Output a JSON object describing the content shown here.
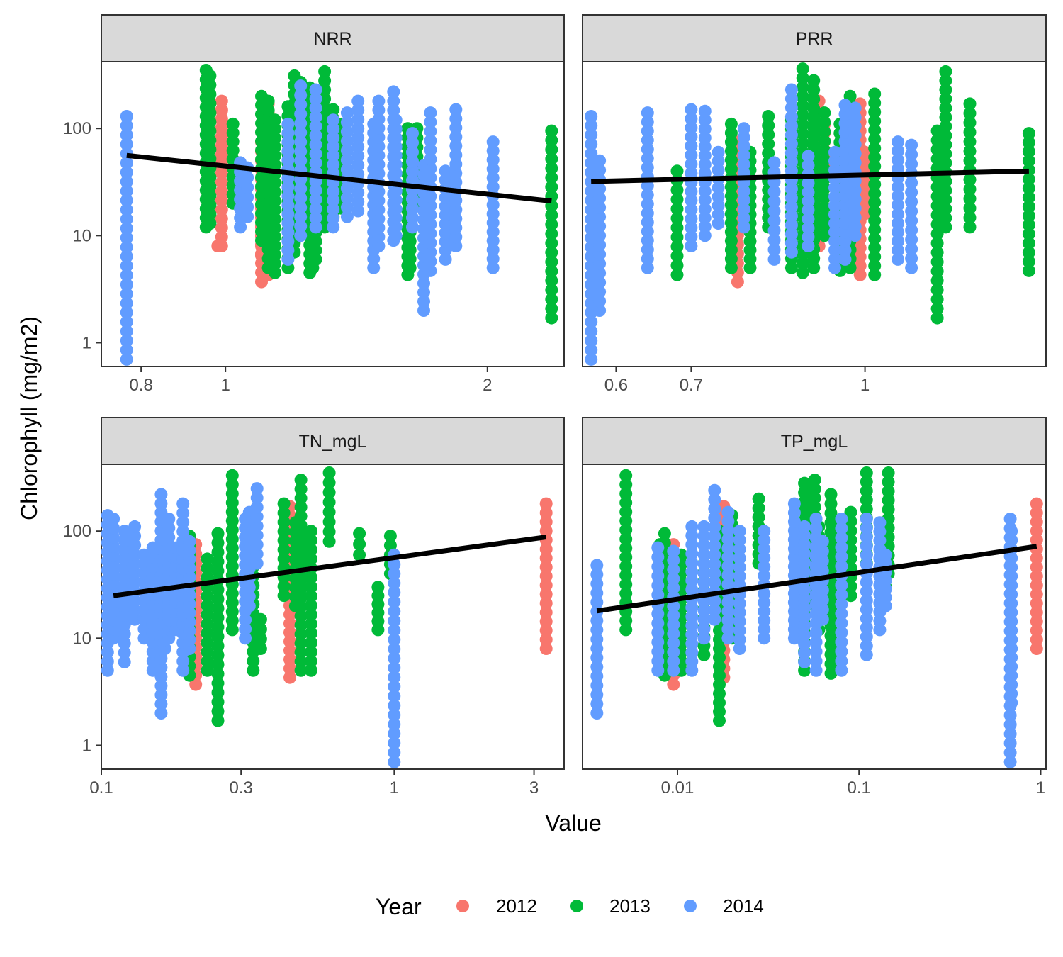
{
  "chart_data": {
    "type": "scatter",
    "facet_layout": "2x2",
    "ylabel": "Chlorophyll (mg/m2)",
    "xlabel": "Value",
    "y_scale": "log10",
    "x_scale": "log10",
    "ylim": [
      0.6,
      420
    ],
    "y_ticks": [
      {
        "value": 1,
        "label": "1"
      },
      {
        "value": 10,
        "label": "10"
      },
      {
        "value": 100,
        "label": "100"
      }
    ],
    "legend": {
      "title": "Year",
      "position": "bottom",
      "entries": [
        {
          "label": "2012",
          "color": "#F8766D"
        },
        {
          "label": "2013",
          "color": "#00BA38"
        },
        {
          "label": "2014",
          "color": "#619CFF"
        }
      ]
    },
    "trend_line_color": "#000000",
    "panels": [
      {
        "title": "NRR",
        "xlim": [
          0.72,
          2.45
        ],
        "x_ticks": [
          {
            "value": 0.8,
            "label": "0.8"
          },
          {
            "value": 1,
            "label": "1"
          },
          {
            "value": 2,
            "label": "2"
          }
        ],
        "trend": {
          "x": [
            0.77,
            2.37
          ],
          "y": [
            56,
            21
          ]
        },
        "series": [
          {
            "name": "2012",
            "x": [
              0.99,
              0.98,
              0.99,
              1.1,
              1.1,
              1.12,
              1.12,
              1.13,
              1.13
            ],
            "y_min": [
              43,
              8,
              8,
              3.7,
              6.5,
              4.3,
              17,
              25,
              12
            ],
            "y_max": [
              180,
              8,
              150,
              75,
              75,
              170,
              110,
              80,
              60
            ]
          },
          {
            "name": "2013",
            "x": [
              0.95,
              0.96,
              1.02,
              1.1,
              1.12,
              1.14,
              1.18,
              1.2,
              1.22,
              1.25,
              1.26,
              1.27,
              1.3,
              1.33,
              1.36,
              1.62,
              1.63,
              1.66,
              2.37
            ],
            "y_min": [
              12,
              13,
              20,
              9,
              5,
              4.5,
              5,
              7,
              20,
              4.5,
              5,
              6,
              12,
              15,
              18,
              4.3,
              5,
              20,
              1.7
            ],
            "y_max": [
              350,
              310,
              110,
              200,
              180,
              120,
              160,
              310,
              270,
              240,
              160,
              130,
              340,
              150,
              110,
              100,
              60,
              100,
              95
            ]
          },
          {
            "name": "2014",
            "x": [
              0.77,
              1.04,
              1.06,
              1.18,
              1.22,
              1.27,
              1.33,
              1.38,
              1.42,
              1.48,
              1.5,
              1.56,
              1.57,
              1.64,
              1.69,
              1.72,
              1.79,
              1.84,
              2.03
            ],
            "y_min": [
              0.7,
              12,
              15,
              6,
              10,
              12,
              12,
              15,
              17,
              5,
              8,
              9,
              10,
              12,
              2,
              4.7,
              6,
              8,
              5
            ],
            "y_max": [
              130,
              48,
              43,
              110,
              250,
              230,
              120,
              140,
              180,
              110,
              180,
              220,
              120,
              90,
              45,
              140,
              40,
              150,
              75
            ]
          }
        ]
      },
      {
        "title": "PRR",
        "xlim": [
          0.56,
          1.45
        ],
        "x_ticks": [
          {
            "value": 0.6,
            "label": "0.6"
          },
          {
            "value": 0.7,
            "label": "0.7"
          },
          {
            "value": 1,
            "label": "1"
          }
        ],
        "trend": {
          "x": [
            0.57,
            1.4
          ],
          "y": [
            32,
            40
          ]
        },
        "series": [
          {
            "name": "2012",
            "x": [
              0.77,
              0.91,
              0.92,
              0.99,
              1.0
            ],
            "y_min": [
              3.7,
              8,
              43,
              4.3,
              16
            ],
            "y_max": [
              75,
              180,
              110,
              170,
              60
            ]
          },
          {
            "name": "2013",
            "x": [
              0.68,
              0.76,
              0.79,
              0.82,
              0.86,
              0.88,
              0.9,
              0.92,
              0.95,
              0.97,
              1.02,
              1.16,
              1.18,
              1.24,
              1.4
            ],
            "y_min": [
              4.3,
              5,
              5,
              12,
              5,
              4.5,
              5,
              10,
              4.7,
              5,
              4.3,
              1.7,
              12,
              12,
              4.7
            ],
            "y_max": [
              40,
              110,
              60,
              130,
              120,
              360,
              280,
              140,
              110,
              200,
              210,
              95,
              340,
              170,
              90
            ]
          },
          {
            "name": "2014",
            "x": [
              0.57,
              0.58,
              0.64,
              0.7,
              0.72,
              0.74,
              0.78,
              0.83,
              0.86,
              0.89,
              0.94,
              0.96,
              0.98,
              1.07,
              1.1
            ],
            "y_min": [
              0.7,
              2,
              5,
              8,
              10,
              13,
              12,
              6,
              7,
              8,
              5,
              6,
              10,
              6,
              5
            ],
            "y_max": [
              130,
              50,
              140,
              150,
              145,
              60,
              100,
              48,
              230,
              55,
              60,
              165,
              155,
              75,
              70
            ]
          }
        ]
      },
      {
        "title": "TN_mgL",
        "xlim": [
          0.1,
          3.8
        ],
        "x_ticks": [
          {
            "value": 0.1,
            "label": "0.1"
          },
          {
            "value": 0.3,
            "label": "0.3"
          },
          {
            "value": 1,
            "label": "1"
          },
          {
            "value": 3,
            "label": "3"
          }
        ],
        "trend": {
          "x": [
            0.11,
            3.3
          ],
          "y": [
            25,
            88
          ]
        },
        "series": [
          {
            "name": "2012",
            "x": [
              0.21,
              0.44,
              3.3
            ],
            "y_min": [
              3.7,
              4.3,
              8
            ],
            "y_max": [
              75,
              170,
              180
            ]
          },
          {
            "name": "2013",
            "x": [
              0.2,
              0.23,
              0.25,
              0.28,
              0.33,
              0.35,
              0.42,
              0.46,
              0.48,
              0.52,
              0.6,
              0.76,
              0.88,
              0.97
            ],
            "y_min": [
              4.5,
              5,
              1.7,
              12,
              5,
              8,
              25,
              20,
              5,
              5,
              80,
              60,
              12,
              40
            ],
            "y_max": [
              90,
              55,
              95,
              330,
              70,
              15,
              180,
              120,
              300,
              100,
              350,
              95,
              30,
              90
            ]
          },
          {
            "name": "2014",
            "x": [
              0.105,
              0.11,
              0.12,
              0.13,
              0.14,
              0.15,
              0.16,
              0.165,
              0.17,
              0.18,
              0.19,
              0.2,
              0.31,
              0.32,
              0.34,
              1.0
            ],
            "y_min": [
              5,
              10,
              6,
              15,
              10,
              5,
              2,
              8,
              10,
              12,
              5,
              8,
              10,
              20,
              50,
              0.7
            ],
            "y_max": [
              140,
              130,
              100,
              110,
              60,
              70,
              220,
              100,
              130,
              70,
              180,
              80,
              130,
              150,
              250,
              60
            ]
          }
        ]
      },
      {
        "title": "TP_mgL",
        "xlim": [
          0.003,
          1.07
        ],
        "x_ticks": [
          {
            "value": 0.01,
            "label": "0.01"
          },
          {
            "value": 0.1,
            "label": "0.1"
          },
          {
            "value": 1,
            "label": "1"
          }
        ],
        "trend": {
          "x": [
            0.0036,
            0.95
          ],
          "y": [
            18,
            72
          ]
        },
        "series": [
          {
            "name": "2012",
            "x": [
              0.0095,
              0.0097,
              0.018,
              0.95
            ],
            "y_min": [
              3.7,
              6,
              4.3,
              8
            ],
            "y_max": [
              75,
              60,
              170,
              180
            ]
          },
          {
            "name": "2013",
            "x": [
              0.0052,
              0.008,
              0.0085,
              0.0105,
              0.014,
              0.017,
              0.02,
              0.028,
              0.05,
              0.057,
              0.06,
              0.07,
              0.09,
              0.11,
              0.14,
              0.145
            ],
            "y_min": [
              12,
              5,
              4.5,
              5,
              7,
              1.7,
              10,
              50,
              5,
              20,
              12,
              4.7,
              25,
              50,
              30,
              40
            ],
            "y_max": [
              330,
              75,
              95,
              60,
              50,
              100,
              140,
              200,
              280,
              300,
              110,
              220,
              150,
              350,
              110,
              350
            ]
          },
          {
            "name": "2014",
            "x": [
              0.0036,
              0.0078,
              0.0095,
              0.012,
              0.014,
              0.016,
              0.019,
              0.022,
              0.03,
              0.044,
              0.05,
              0.058,
              0.063,
              0.08,
              0.11,
              0.13,
              0.14,
              0.68,
              0.69
            ],
            "y_min": [
              2,
              5,
              5,
              5,
              10,
              15,
              10,
              8,
              10,
              10,
              6,
              5,
              15,
              5,
              7,
              12,
              20,
              0.7,
              2.5
            ],
            "y_max": [
              48,
              70,
              65,
              110,
              110,
              240,
              150,
              100,
              100,
              180,
              110,
              130,
              80,
              130,
              130,
              120,
              60,
              130,
              100
            ]
          }
        ]
      }
    ]
  }
}
